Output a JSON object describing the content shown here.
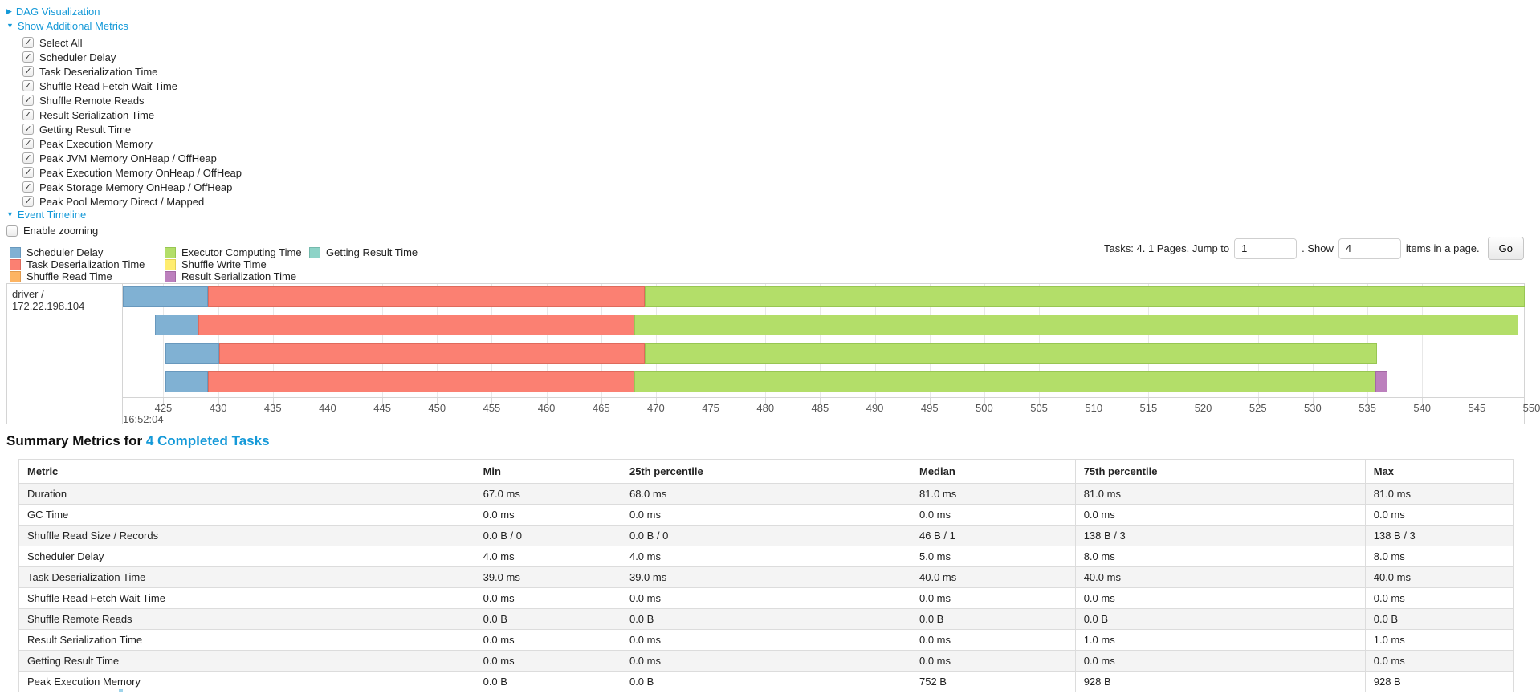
{
  "toggles": {
    "dag": {
      "label": "DAG Visualization",
      "arrow": "▶",
      "state": "collapsed"
    },
    "additional_metrics": {
      "label": "Show Additional Metrics",
      "arrow": "▼",
      "state": "expanded"
    },
    "event_timeline": {
      "label": "Event Timeline",
      "arrow": "▼",
      "state": "expanded"
    }
  },
  "metric_checkboxes": [
    {
      "label": "Select All",
      "checked": true
    },
    {
      "label": "Scheduler Delay",
      "checked": true
    },
    {
      "label": "Task Deserialization Time",
      "checked": true
    },
    {
      "label": "Shuffle Read Fetch Wait Time",
      "checked": true
    },
    {
      "label": "Shuffle Remote Reads",
      "checked": true
    },
    {
      "label": "Result Serialization Time",
      "checked": true
    },
    {
      "label": "Getting Result Time",
      "checked": true
    },
    {
      "label": "Peak Execution Memory",
      "checked": true
    },
    {
      "label": "Peak JVM Memory OnHeap / OffHeap",
      "checked": true
    },
    {
      "label": "Peak Execution Memory OnHeap / OffHeap",
      "checked": true
    },
    {
      "label": "Peak Storage Memory OnHeap / OffHeap",
      "checked": true
    },
    {
      "label": "Peak Pool Memory Direct / Mapped",
      "checked": true
    }
  ],
  "enable_zooming": {
    "label": "Enable zooming",
    "checked": false
  },
  "series": {
    "scheduler-delay": {
      "label": "Scheduler Delay",
      "color": "#80B1D3",
      "border": "#6898bd"
    },
    "task-deserialization": {
      "label": "Task Deserialization Time",
      "color": "#FB8072",
      "border": "#df6a5c"
    },
    "shuffle-read": {
      "label": "Shuffle Read Time",
      "color": "#FDB462",
      "border": "#e09a4e"
    },
    "executor-computing": {
      "label": "Executor Computing Time",
      "color": "#B3DE69",
      "border": "#98c653"
    },
    "shuffle-write": {
      "label": "Shuffle Write Time",
      "color": "#FFED6F",
      "border": "#e3d055"
    },
    "result-serialization": {
      "label": "Result Serialization Time",
      "color": "#BC80BD",
      "border": "#a369a4"
    },
    "getting-result": {
      "label": "Getting Result Time",
      "color": "#8DD3C7",
      "border": "#74b9ac"
    }
  },
  "legend_columns": [
    [
      "scheduler-delay",
      "task-deserialization",
      "shuffle-read"
    ],
    [
      "executor-computing",
      "shuffle-write",
      "result-serialization"
    ],
    [
      "getting-result"
    ]
  ],
  "pagination": {
    "tasks_text": "Tasks: 4. 1 Pages. Jump to",
    "jump_value": "1",
    "show_text": ". Show",
    "show_value": "4",
    "items_text": "items in a page.",
    "go_label": "Go"
  },
  "chart_data": {
    "type": "timeline",
    "group_label": "driver / 172.22.198.104",
    "x_unit": "milliseconds after 16:52:04",
    "x_domain_ms": [
      421.3,
      549.3
    ],
    "tick_start": 425,
    "tick_step": 5,
    "tick_end": 550,
    "major_tick_label": "16:52:04",
    "tasks": [
      {
        "segments": [
          {
            "type": "scheduler-delay",
            "start": 421.3,
            "end": 429.1
          },
          {
            "type": "task-deserialization",
            "start": 429.1,
            "end": 469.0
          },
          {
            "type": "executor-computing",
            "start": 469.0,
            "end": 549.4
          }
        ]
      },
      {
        "segments": [
          {
            "type": "scheduler-delay",
            "start": 424.2,
            "end": 428.2
          },
          {
            "type": "task-deserialization",
            "start": 428.2,
            "end": 468.0
          },
          {
            "type": "executor-computing",
            "start": 468.0,
            "end": 548.8
          }
        ]
      },
      {
        "segments": [
          {
            "type": "scheduler-delay",
            "start": 425.2,
            "end": 430.1
          },
          {
            "type": "task-deserialization",
            "start": 430.1,
            "end": 469.0
          },
          {
            "type": "executor-computing",
            "start": 469.0,
            "end": 535.9
          }
        ]
      },
      {
        "segments": [
          {
            "type": "scheduler-delay",
            "start": 425.2,
            "end": 429.1
          },
          {
            "type": "task-deserialization",
            "start": 429.1,
            "end": 468.0
          },
          {
            "type": "executor-computing",
            "start": 468.0,
            "end": 535.7
          },
          {
            "type": "result-serialization",
            "start": 535.7,
            "end": 536.8
          }
        ]
      }
    ]
  },
  "summary": {
    "heading_prefix": "Summary Metrics for ",
    "heading_link": "4 Completed Tasks",
    "table": {
      "headers": [
        "Metric",
        "Min",
        "25th percentile",
        "Median",
        "75th percentile",
        "Max"
      ],
      "rows": [
        [
          "Duration",
          "67.0 ms",
          "68.0 ms",
          "81.0 ms",
          "81.0 ms",
          "81.0 ms"
        ],
        [
          "GC Time",
          "0.0 ms",
          "0.0 ms",
          "0.0 ms",
          "0.0 ms",
          "0.0 ms"
        ],
        [
          "Shuffle Read Size / Records",
          "0.0 B / 0",
          "0.0 B / 0",
          "46 B / 1",
          "138 B / 3",
          "138 B / 3"
        ],
        [
          "Scheduler Delay",
          "4.0 ms",
          "4.0 ms",
          "5.0 ms",
          "8.0 ms",
          "8.0 ms"
        ],
        [
          "Task Deserialization Time",
          "39.0 ms",
          "39.0 ms",
          "40.0 ms",
          "40.0 ms",
          "40.0 ms"
        ],
        [
          "Shuffle Read Fetch Wait Time",
          "0.0 ms",
          "0.0 ms",
          "0.0 ms",
          "0.0 ms",
          "0.0 ms"
        ],
        [
          "Shuffle Remote Reads",
          "0.0 B",
          "0.0 B",
          "0.0 B",
          "0.0 B",
          "0.0 B"
        ],
        [
          "Result Serialization Time",
          "0.0 ms",
          "0.0 ms",
          "0.0 ms",
          "1.0 ms",
          "1.0 ms"
        ],
        [
          "Getting Result Time",
          "0.0 ms",
          "0.0 ms",
          "0.0 ms",
          "0.0 ms",
          "0.0 ms"
        ],
        [
          "Peak Execution Memory",
          "0.0 B",
          "0.0 B",
          "752 B",
          "928 B",
          "928 B"
        ]
      ]
    }
  }
}
